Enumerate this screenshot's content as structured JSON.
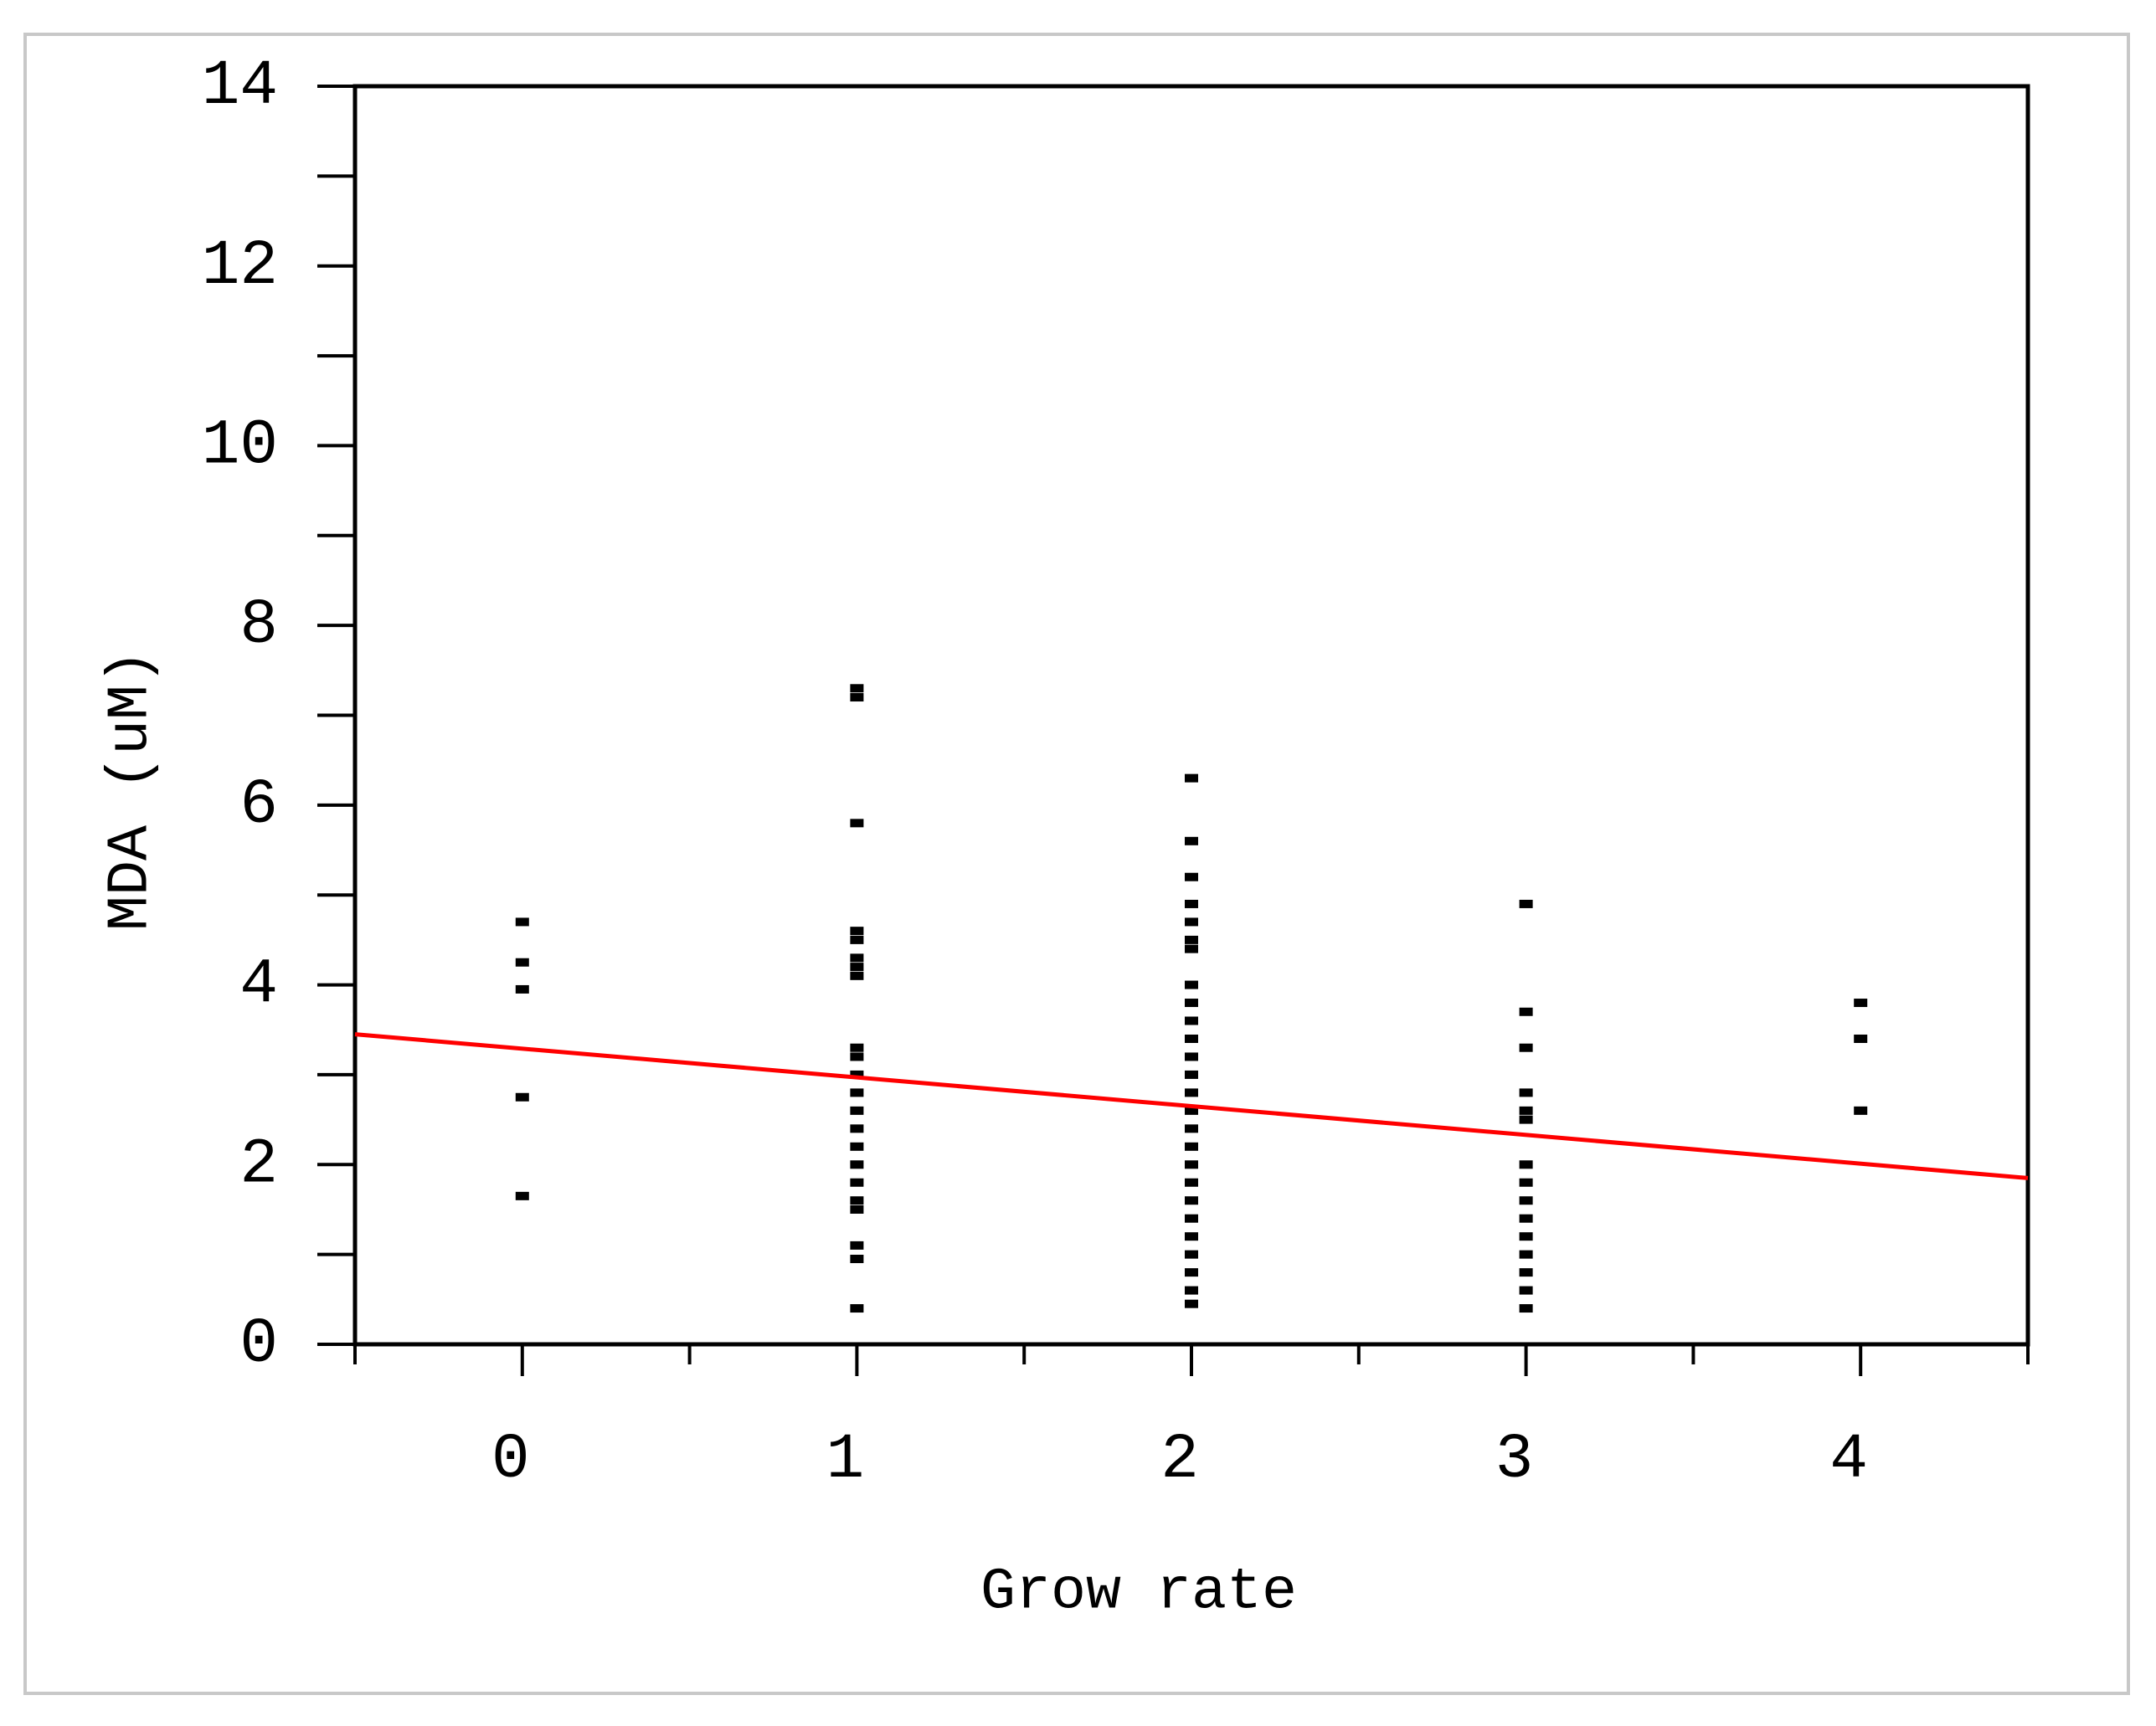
{
  "chart_data": {
    "type": "scatter",
    "xlabel": "Grow rate",
    "ylabel": "MDA (uM)",
    "xlim": [
      -0.5,
      4.5
    ],
    "ylim": [
      0,
      14
    ],
    "xticks": [
      0,
      1,
      2,
      3,
      4
    ],
    "yticks": [
      0,
      2,
      4,
      6,
      8,
      10,
      12,
      14
    ],
    "xminorticks": [
      -0.5,
      0.5,
      1.5,
      2.5,
      3.5,
      4.5
    ],
    "yminorticks": [
      1,
      3,
      5,
      7,
      9,
      11,
      13
    ],
    "series": [
      {
        "color": "#000000",
        "x": [
          0,
          0,
          0,
          0,
          0,
          1,
          1,
          1,
          1,
          1,
          1,
          1,
          1,
          1,
          1,
          1,
          1,
          1,
          1,
          1,
          1,
          1,
          1,
          1,
          1,
          1,
          1,
          2,
          2,
          2,
          2,
          2,
          2,
          2,
          2,
          2,
          2,
          2,
          2,
          2,
          2,
          2,
          2,
          2,
          2,
          2,
          2,
          2,
          2,
          2,
          2,
          2,
          2,
          3,
          3,
          3,
          3,
          3,
          3,
          3,
          3,
          3,
          3,
          3,
          3,
          3,
          3,
          3,
          4,
          4,
          4
        ],
        "values": [
          4.7,
          4.25,
          3.95,
          2.75,
          1.65,
          7.3,
          7.2,
          5.8,
          4.6,
          4.5,
          4.3,
          4.2,
          4.1,
          3.3,
          3.2,
          3.0,
          2.8,
          2.6,
          2.4,
          2.2,
          2.0,
          1.8,
          1.6,
          1.5,
          1.1,
          0.95,
          0.4,
          6.3,
          5.6,
          5.2,
          4.9,
          4.7,
          4.5,
          4.4,
          4.0,
          3.8,
          3.6,
          3.4,
          3.2,
          3.0,
          2.8,
          2.6,
          2.4,
          2.2,
          2.0,
          1.8,
          1.6,
          1.4,
          1.2,
          1.0,
          0.8,
          0.6,
          0.45,
          4.9,
          3.7,
          3.3,
          2.8,
          2.6,
          2.5,
          2.0,
          1.8,
          1.6,
          1.4,
          1.2,
          1.0,
          0.8,
          0.6,
          0.4,
          3.8,
          3.4,
          2.6
        ]
      },
      {
        "type": "line",
        "color": "#ff0000",
        "x": [
          -0.5,
          4.5
        ],
        "values": [
          3.45,
          1.85
        ]
      }
    ]
  }
}
